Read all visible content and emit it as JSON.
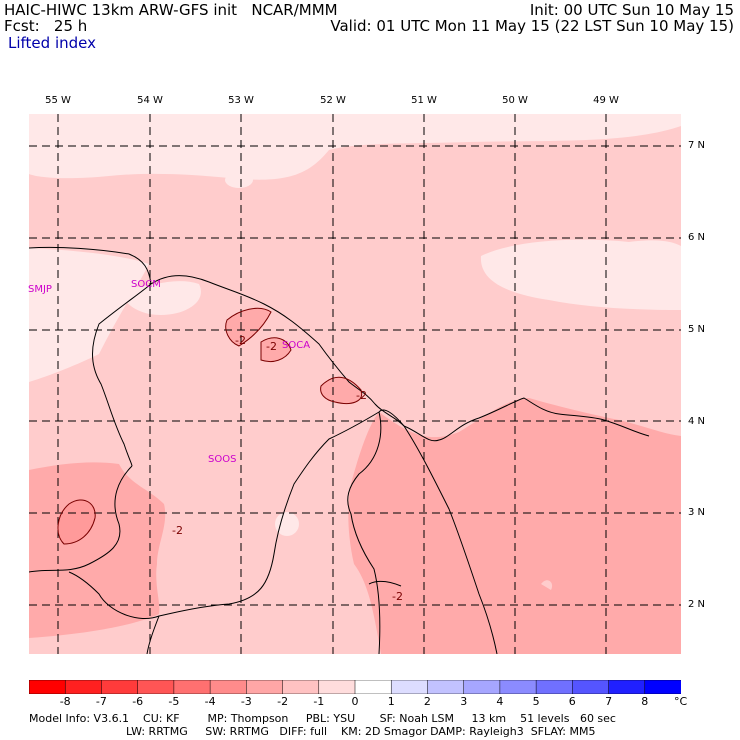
{
  "header": {
    "title_left": "HAIC-HIWC 13km ARW-GFS init   NCAR/MMM",
    "forecast": "Fcst:   25 h",
    "field": "Lifted index",
    "init": "Init: 00 UTC Sun 10 May 15",
    "valid": "Valid: 01 UTC Mon 11 May 15 (22 LST Sun 10 May 15)"
  },
  "axes": {
    "longitudes": [
      "55 W",
      "54 W",
      "53 W",
      "52 W",
      "51 W",
      "50 W",
      "49 W"
    ],
    "latitudes": [
      "7 N",
      "6 N",
      "5 N",
      "4 N",
      "3 N",
      "2 N"
    ]
  },
  "stations": [
    "SMJP",
    "SOCM",
    "SOCA",
    "SOOS"
  ],
  "contour_labels": [
    "-2",
    "-2",
    "-2",
    "-2",
    "-2"
  ],
  "colorbar": {
    "ticks": [
      "-8",
      "-7",
      "-6",
      "-5",
      "-4",
      "-3",
      "-2",
      "-1",
      "0",
      "1",
      "2",
      "3",
      "4",
      "5",
      "6",
      "7",
      "8"
    ],
    "unit": "°C",
    "colors": [
      "#ff0000",
      "#ff2020",
      "#ff3b3b",
      "#ff5555",
      "#ff7070",
      "#ff8b8b",
      "#ffa6a6",
      "#ffc2c2",
      "#ffdddd",
      "#ffffff",
      "#ddddff",
      "#c2c2ff",
      "#a6a6ff",
      "#8b8bff",
      "#7070ff",
      "#5555ff",
      "#2020ff",
      "#0000ff"
    ]
  },
  "fill_colors": {
    "pale": "#ffe8e8",
    "light": "#ffcccc",
    "mid": "#ffaaaa",
    "faint_blue": "#e8e8ff"
  },
  "footer": {
    "line1": "Model Info: V3.6.1    CU: KF        MP: Thompson     PBL: YSU       SF: Noah LSM     13 km    51 levels   60 sec",
    "line2": "LW: RRTMG     SW: RRTMG   DIFF: full    KM: 2D Smagor DAMP: Rayleigh3  SFLAY: MM5"
  }
}
